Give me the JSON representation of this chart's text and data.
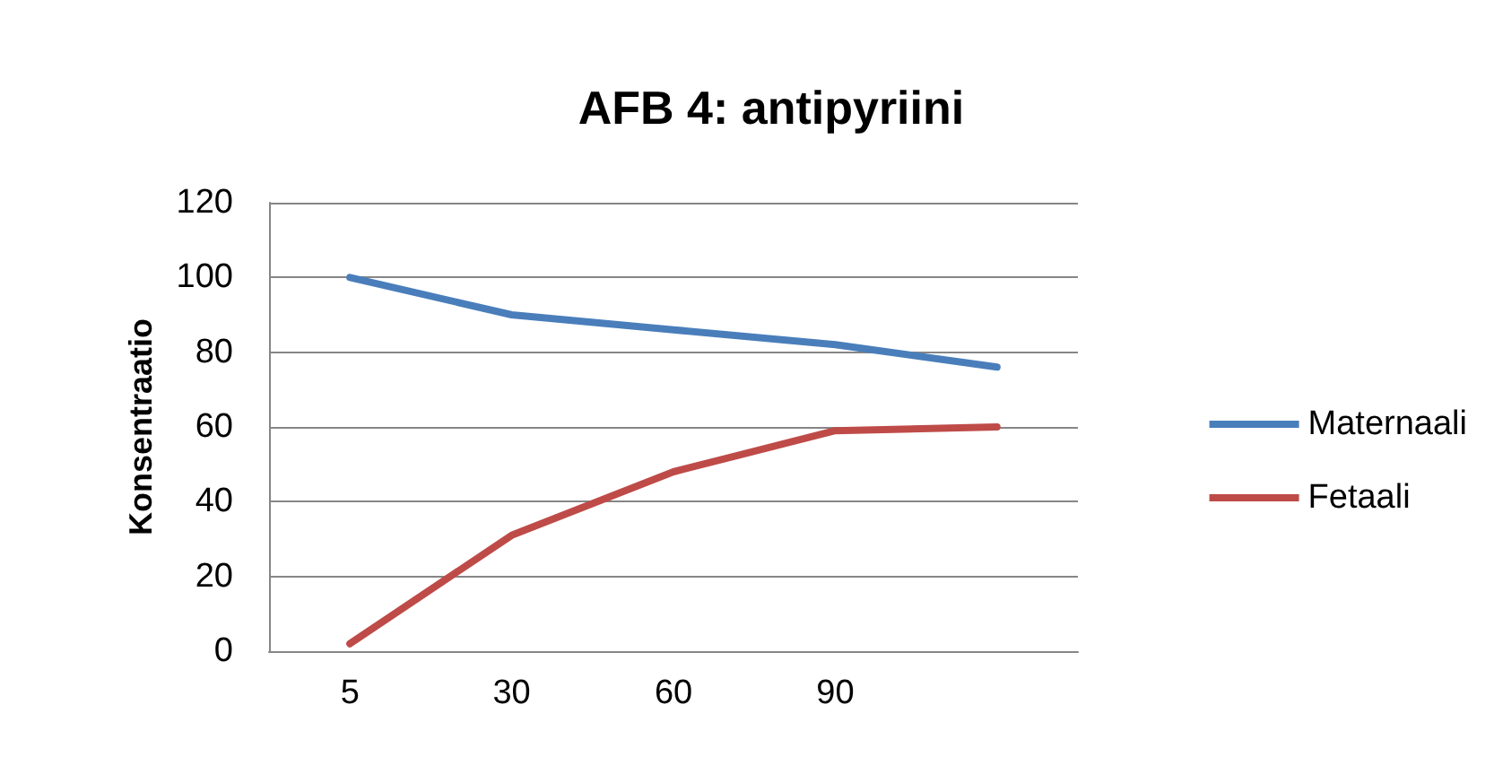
{
  "chart_data": {
    "type": "line",
    "title": "AFB 4: antipyriini",
    "ylabel": "Konsentraatio",
    "categories": [
      "5",
      "30",
      "60",
      "90",
      null
    ],
    "series": [
      {
        "name": "Maternaali",
        "color": "#4a7ebb",
        "values": [
          100,
          90,
          86,
          82,
          76
        ]
      },
      {
        "name": "Fetaali",
        "color": "#be4b48",
        "values": [
          2,
          31,
          48,
          59,
          60
        ]
      }
    ],
    "ylim": [
      0,
      120
    ],
    "yticks": [
      0,
      20,
      40,
      60,
      80,
      100,
      120
    ],
    "grid": "y",
    "legend": "right",
    "marker": "none",
    "line_style": "solid"
  }
}
